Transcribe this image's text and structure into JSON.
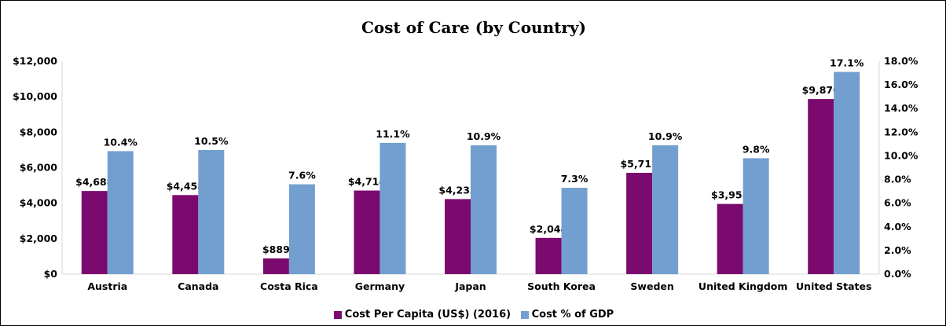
{
  "chart_data": {
    "type": "bar",
    "title": "Cost of Care (by Country)",
    "categories": [
      "Austria",
      "Canada",
      "Costa Rica",
      "Germany",
      "Japan",
      "South Korea",
      "Sweden",
      "United Kingdom",
      "United States"
    ],
    "series": [
      {
        "name": "Cost Per Capita (US$) (2016)",
        "axis": "left",
        "color": "#7b0a6e",
        "values": [
          4688,
          4458,
          889,
          4714,
          4233,
          2044,
          5711,
          3958,
          9870
        ],
        "labels": [
          "$4,688",
          "$4,458",
          "$889",
          "$4,714",
          "$4,233",
          "$2,044",
          "$5,711",
          "$3,958",
          "$9,870"
        ]
      },
      {
        "name": "Cost % of GDP",
        "axis": "right",
        "color": "#729fcf",
        "values": [
          10.4,
          10.5,
          7.6,
          11.1,
          10.9,
          7.3,
          10.9,
          9.8,
          17.1
        ],
        "labels": [
          "10.4%",
          "10.5%",
          "7.6%",
          "11.1%",
          "10.9%",
          "7.3%",
          "10.9%",
          "9.8%",
          "17.1%"
        ]
      }
    ],
    "y_left": {
      "ylim": [
        0,
        12000
      ],
      "ticks": [
        "$0",
        "$2,000",
        "$4,000",
        "$6,000",
        "$8,000",
        "$10,000",
        "$12,000"
      ]
    },
    "y_right": {
      "ylim": [
        0,
        18
      ],
      "ticks": [
        "0.0%",
        "2.0%",
        "4.0%",
        "6.0%",
        "8.0%",
        "10.0%",
        "12.0%",
        "14.0%",
        "16.0%",
        "18.0%"
      ]
    },
    "legend": "bottom",
    "grid": false
  }
}
